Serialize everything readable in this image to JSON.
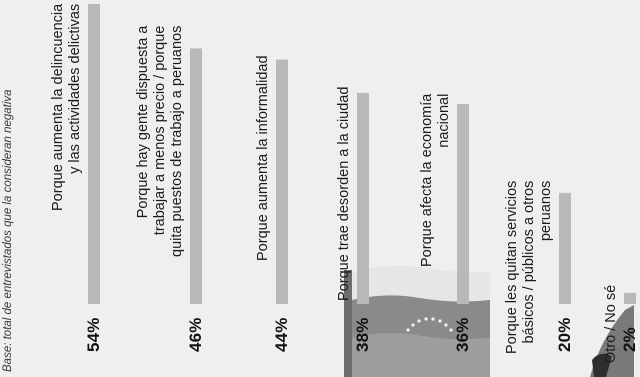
{
  "chart_data": {
    "type": "bar",
    "orientation": "vertical, rotated 90° counter-clockwise (read from the left edge)",
    "base_note": "Base: total de entrevistados que la consideran negativa",
    "categories": [
      "Porque aumenta la delincuencia y las actividades delictivas",
      "Porque hay gente dispuesta a trabajar a menos precio / porque quita puestos de trabajo a peruanos",
      "Porque aumenta la informalidad",
      "Porque trae desorden a la ciudad",
      "Porque afecta la economía nacional",
      "Porque les quitan servicios básicos / públicos a otros peruanos",
      "Otro / No sé"
    ],
    "label_lines": [
      [
        "Porque aumenta la delincuencia",
        "y las actividades delictivas"
      ],
      [
        "Porque hay gente dispuesta a",
        "trabajar a menos precio / porque",
        "quita puestos de trabajo a peruanos"
      ],
      [
        "Porque aumenta la informalidad"
      ],
      [
        "Porque trae desorden a la ciudad"
      ],
      [
        "Porque afecta la economía",
        "nacional"
      ],
      [
        "Porque les quitan servicios",
        "básicos / públicos a otros",
        "peruanos"
      ],
      [
        "Otro / No sé"
      ]
    ],
    "values": [
      54,
      46,
      44,
      38,
      36,
      20,
      2
    ],
    "value_labels": [
      "54%",
      "46%",
      "44%",
      "38%",
      "36%",
      "20%",
      "2%"
    ],
    "unit": "%",
    "ylim": [
      0,
      54
    ],
    "colors": {
      "bar": "#b9b9b9",
      "background": "#efefef",
      "text": "#1f1f1f"
    }
  }
}
